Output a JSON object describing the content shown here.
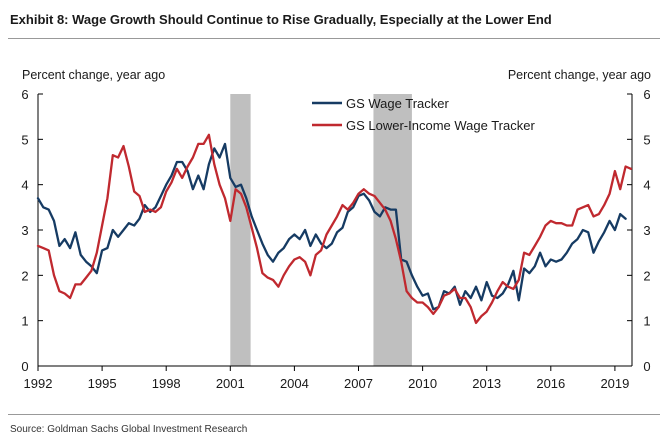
{
  "title": "Exhibit 8: Wage Growth Should Continue to Rise Gradually, Especially at the Lower End",
  "source": "Source: Goldman Sachs Global Investment Research",
  "chart_data": {
    "type": "line",
    "ylabel_left": "Percent change, year ago",
    "ylabel_right": "Percent change, year ago",
    "xlim": [
      1992,
      2019.8
    ],
    "ylim": [
      0,
      6
    ],
    "x_ticks": [
      "1992",
      "1995",
      "1998",
      "2001",
      "2004",
      "2007",
      "2010",
      "2013",
      "2016",
      "2019"
    ],
    "y_ticks": [
      "0",
      "1",
      "2",
      "3",
      "4",
      "5",
      "6"
    ],
    "recessions": [
      [
        2001.0,
        2001.95
      ],
      [
        2007.7,
        2009.5
      ]
    ],
    "recession_color": "#bfbfbf",
    "legend_position": "top-center",
    "series": [
      {
        "name": "GS Wage Tracker",
        "color": "#163b63",
        "points": [
          [
            1992.0,
            3.7
          ],
          [
            1992.25,
            3.5
          ],
          [
            1992.5,
            3.45
          ],
          [
            1992.75,
            3.2
          ],
          [
            1993.0,
            2.65
          ],
          [
            1993.25,
            2.8
          ],
          [
            1993.5,
            2.6
          ],
          [
            1993.75,
            2.95
          ],
          [
            1994.0,
            2.45
          ],
          [
            1994.25,
            2.3
          ],
          [
            1994.5,
            2.2
          ],
          [
            1994.75,
            2.05
          ],
          [
            1995.0,
            2.55
          ],
          [
            1995.25,
            2.6
          ],
          [
            1995.5,
            3.0
          ],
          [
            1995.75,
            2.85
          ],
          [
            1996.0,
            3.0
          ],
          [
            1996.25,
            3.15
          ],
          [
            1996.5,
            3.1
          ],
          [
            1996.75,
            3.25
          ],
          [
            1997.0,
            3.55
          ],
          [
            1997.25,
            3.4
          ],
          [
            1997.5,
            3.5
          ],
          [
            1997.75,
            3.75
          ],
          [
            1998.0,
            4.0
          ],
          [
            1998.25,
            4.2
          ],
          [
            1998.5,
            4.5
          ],
          [
            1998.75,
            4.5
          ],
          [
            1999.0,
            4.3
          ],
          [
            1999.25,
            3.9
          ],
          [
            1999.5,
            4.2
          ],
          [
            1999.75,
            3.9
          ],
          [
            2000.0,
            4.45
          ],
          [
            2000.25,
            4.8
          ],
          [
            2000.5,
            4.6
          ],
          [
            2000.75,
            4.9
          ],
          [
            2001.0,
            4.15
          ],
          [
            2001.25,
            3.95
          ],
          [
            2001.5,
            4.0
          ],
          [
            2001.75,
            3.7
          ],
          [
            2002.0,
            3.3
          ],
          [
            2002.25,
            3.0
          ],
          [
            2002.5,
            2.7
          ],
          [
            2002.75,
            2.45
          ],
          [
            2003.0,
            2.3
          ],
          [
            2003.25,
            2.5
          ],
          [
            2003.5,
            2.6
          ],
          [
            2003.75,
            2.8
          ],
          [
            2004.0,
            2.9
          ],
          [
            2004.25,
            2.8
          ],
          [
            2004.5,
            3.0
          ],
          [
            2004.75,
            2.65
          ],
          [
            2005.0,
            2.9
          ],
          [
            2005.25,
            2.7
          ],
          [
            2005.5,
            2.6
          ],
          [
            2005.75,
            2.7
          ],
          [
            2006.0,
            2.95
          ],
          [
            2006.25,
            3.05
          ],
          [
            2006.5,
            3.4
          ],
          [
            2006.75,
            3.5
          ],
          [
            2007.0,
            3.75
          ],
          [
            2007.25,
            3.8
          ],
          [
            2007.5,
            3.65
          ],
          [
            2007.75,
            3.4
          ],
          [
            2008.0,
            3.3
          ],
          [
            2008.25,
            3.5
          ],
          [
            2008.5,
            3.45
          ],
          [
            2008.75,
            3.45
          ],
          [
            2009.0,
            2.35
          ],
          [
            2009.25,
            2.3
          ],
          [
            2009.5,
            2.0
          ],
          [
            2009.75,
            1.75
          ],
          [
            2010.0,
            1.55
          ],
          [
            2010.25,
            1.6
          ],
          [
            2010.5,
            1.25
          ],
          [
            2010.75,
            1.3
          ],
          [
            2011.0,
            1.65
          ],
          [
            2011.25,
            1.6
          ],
          [
            2011.5,
            1.75
          ],
          [
            2011.75,
            1.35
          ],
          [
            2012.0,
            1.65
          ],
          [
            2012.25,
            1.5
          ],
          [
            2012.5,
            1.75
          ],
          [
            2012.75,
            1.45
          ],
          [
            2013.0,
            1.85
          ],
          [
            2013.25,
            1.55
          ],
          [
            2013.5,
            1.5
          ],
          [
            2013.75,
            1.6
          ],
          [
            2014.0,
            1.8
          ],
          [
            2014.25,
            2.1
          ],
          [
            2014.5,
            1.45
          ],
          [
            2014.75,
            2.15
          ],
          [
            2015.0,
            2.05
          ],
          [
            2015.25,
            2.2
          ],
          [
            2015.5,
            2.5
          ],
          [
            2015.75,
            2.2
          ],
          [
            2016.0,
            2.35
          ],
          [
            2016.25,
            2.3
          ],
          [
            2016.5,
            2.35
          ],
          [
            2016.75,
            2.5
          ],
          [
            2017.0,
            2.7
          ],
          [
            2017.25,
            2.8
          ],
          [
            2017.5,
            3.0
          ],
          [
            2017.75,
            2.95
          ],
          [
            2018.0,
            2.5
          ],
          [
            2018.25,
            2.75
          ],
          [
            2018.5,
            2.95
          ],
          [
            2018.75,
            3.2
          ],
          [
            2019.0,
            3.0
          ],
          [
            2019.25,
            3.35
          ],
          [
            2019.5,
            3.25
          ]
        ]
      },
      {
        "name": "GS Lower-Income Wage Tracker",
        "color": "#c0292f",
        "points": [
          [
            1992.0,
            2.65
          ],
          [
            1992.25,
            2.6
          ],
          [
            1992.5,
            2.55
          ],
          [
            1992.75,
            2.0
          ],
          [
            1993.0,
            1.65
          ],
          [
            1993.25,
            1.6
          ],
          [
            1993.5,
            1.5
          ],
          [
            1993.75,
            1.8
          ],
          [
            1994.0,
            1.8
          ],
          [
            1994.25,
            1.95
          ],
          [
            1994.5,
            2.1
          ],
          [
            1994.75,
            2.5
          ],
          [
            1995.0,
            3.1
          ],
          [
            1995.25,
            3.7
          ],
          [
            1995.5,
            4.65
          ],
          [
            1995.75,
            4.6
          ],
          [
            1996.0,
            4.85
          ],
          [
            1996.25,
            4.4
          ],
          [
            1996.5,
            3.85
          ],
          [
            1996.75,
            3.75
          ],
          [
            1997.0,
            3.4
          ],
          [
            1997.25,
            3.45
          ],
          [
            1997.5,
            3.4
          ],
          [
            1997.75,
            3.5
          ],
          [
            1998.0,
            3.85
          ],
          [
            1998.25,
            4.05
          ],
          [
            1998.5,
            4.35
          ],
          [
            1998.75,
            4.15
          ],
          [
            1999.0,
            4.4
          ],
          [
            1999.25,
            4.6
          ],
          [
            1999.5,
            4.9
          ],
          [
            1999.75,
            4.9
          ],
          [
            2000.0,
            5.1
          ],
          [
            2000.25,
            4.45
          ],
          [
            2000.5,
            4.0
          ],
          [
            2000.75,
            3.7
          ],
          [
            2001.0,
            3.2
          ],
          [
            2001.25,
            3.9
          ],
          [
            2001.5,
            3.8
          ],
          [
            2001.75,
            3.5
          ],
          [
            2002.0,
            3.05
          ],
          [
            2002.25,
            2.6
          ],
          [
            2002.5,
            2.05
          ],
          [
            2002.75,
            1.95
          ],
          [
            2003.0,
            1.9
          ],
          [
            2003.25,
            1.75
          ],
          [
            2003.5,
            2.0
          ],
          [
            2003.75,
            2.2
          ],
          [
            2004.0,
            2.35
          ],
          [
            2004.25,
            2.4
          ],
          [
            2004.5,
            2.3
          ],
          [
            2004.75,
            2.0
          ],
          [
            2005.0,
            2.45
          ],
          [
            2005.25,
            2.55
          ],
          [
            2005.5,
            2.9
          ],
          [
            2005.75,
            3.1
          ],
          [
            2006.0,
            3.3
          ],
          [
            2006.25,
            3.55
          ],
          [
            2006.5,
            3.45
          ],
          [
            2006.75,
            3.6
          ],
          [
            2007.0,
            3.8
          ],
          [
            2007.25,
            3.9
          ],
          [
            2007.5,
            3.8
          ],
          [
            2007.75,
            3.75
          ],
          [
            2008.0,
            3.6
          ],
          [
            2008.25,
            3.45
          ],
          [
            2008.5,
            3.2
          ],
          [
            2008.75,
            2.8
          ],
          [
            2009.0,
            2.3
          ],
          [
            2009.25,
            1.65
          ],
          [
            2009.5,
            1.5
          ],
          [
            2009.75,
            1.4
          ],
          [
            2010.0,
            1.4
          ],
          [
            2010.25,
            1.3
          ],
          [
            2010.5,
            1.15
          ],
          [
            2010.75,
            1.3
          ],
          [
            2011.0,
            1.55
          ],
          [
            2011.25,
            1.6
          ],
          [
            2011.5,
            1.7
          ],
          [
            2011.75,
            1.5
          ],
          [
            2012.0,
            1.5
          ],
          [
            2012.25,
            1.3
          ],
          [
            2012.5,
            0.95
          ],
          [
            2012.75,
            1.1
          ],
          [
            2013.0,
            1.2
          ],
          [
            2013.25,
            1.4
          ],
          [
            2013.5,
            1.65
          ],
          [
            2013.75,
            1.85
          ],
          [
            2014.0,
            1.75
          ],
          [
            2014.25,
            1.7
          ],
          [
            2014.5,
            1.9
          ],
          [
            2014.75,
            2.5
          ],
          [
            2015.0,
            2.45
          ],
          [
            2015.25,
            2.65
          ],
          [
            2015.5,
            2.85
          ],
          [
            2015.75,
            3.1
          ],
          [
            2016.0,
            3.2
          ],
          [
            2016.25,
            3.15
          ],
          [
            2016.5,
            3.15
          ],
          [
            2016.75,
            3.1
          ],
          [
            2017.0,
            3.1
          ],
          [
            2017.25,
            3.45
          ],
          [
            2017.5,
            3.5
          ],
          [
            2017.75,
            3.55
          ],
          [
            2018.0,
            3.3
          ],
          [
            2018.25,
            3.35
          ],
          [
            2018.5,
            3.55
          ],
          [
            2018.75,
            3.8
          ],
          [
            2019.0,
            4.3
          ],
          [
            2019.25,
            3.9
          ],
          [
            2019.5,
            4.4
          ],
          [
            2019.75,
            4.35
          ]
        ]
      }
    ]
  }
}
